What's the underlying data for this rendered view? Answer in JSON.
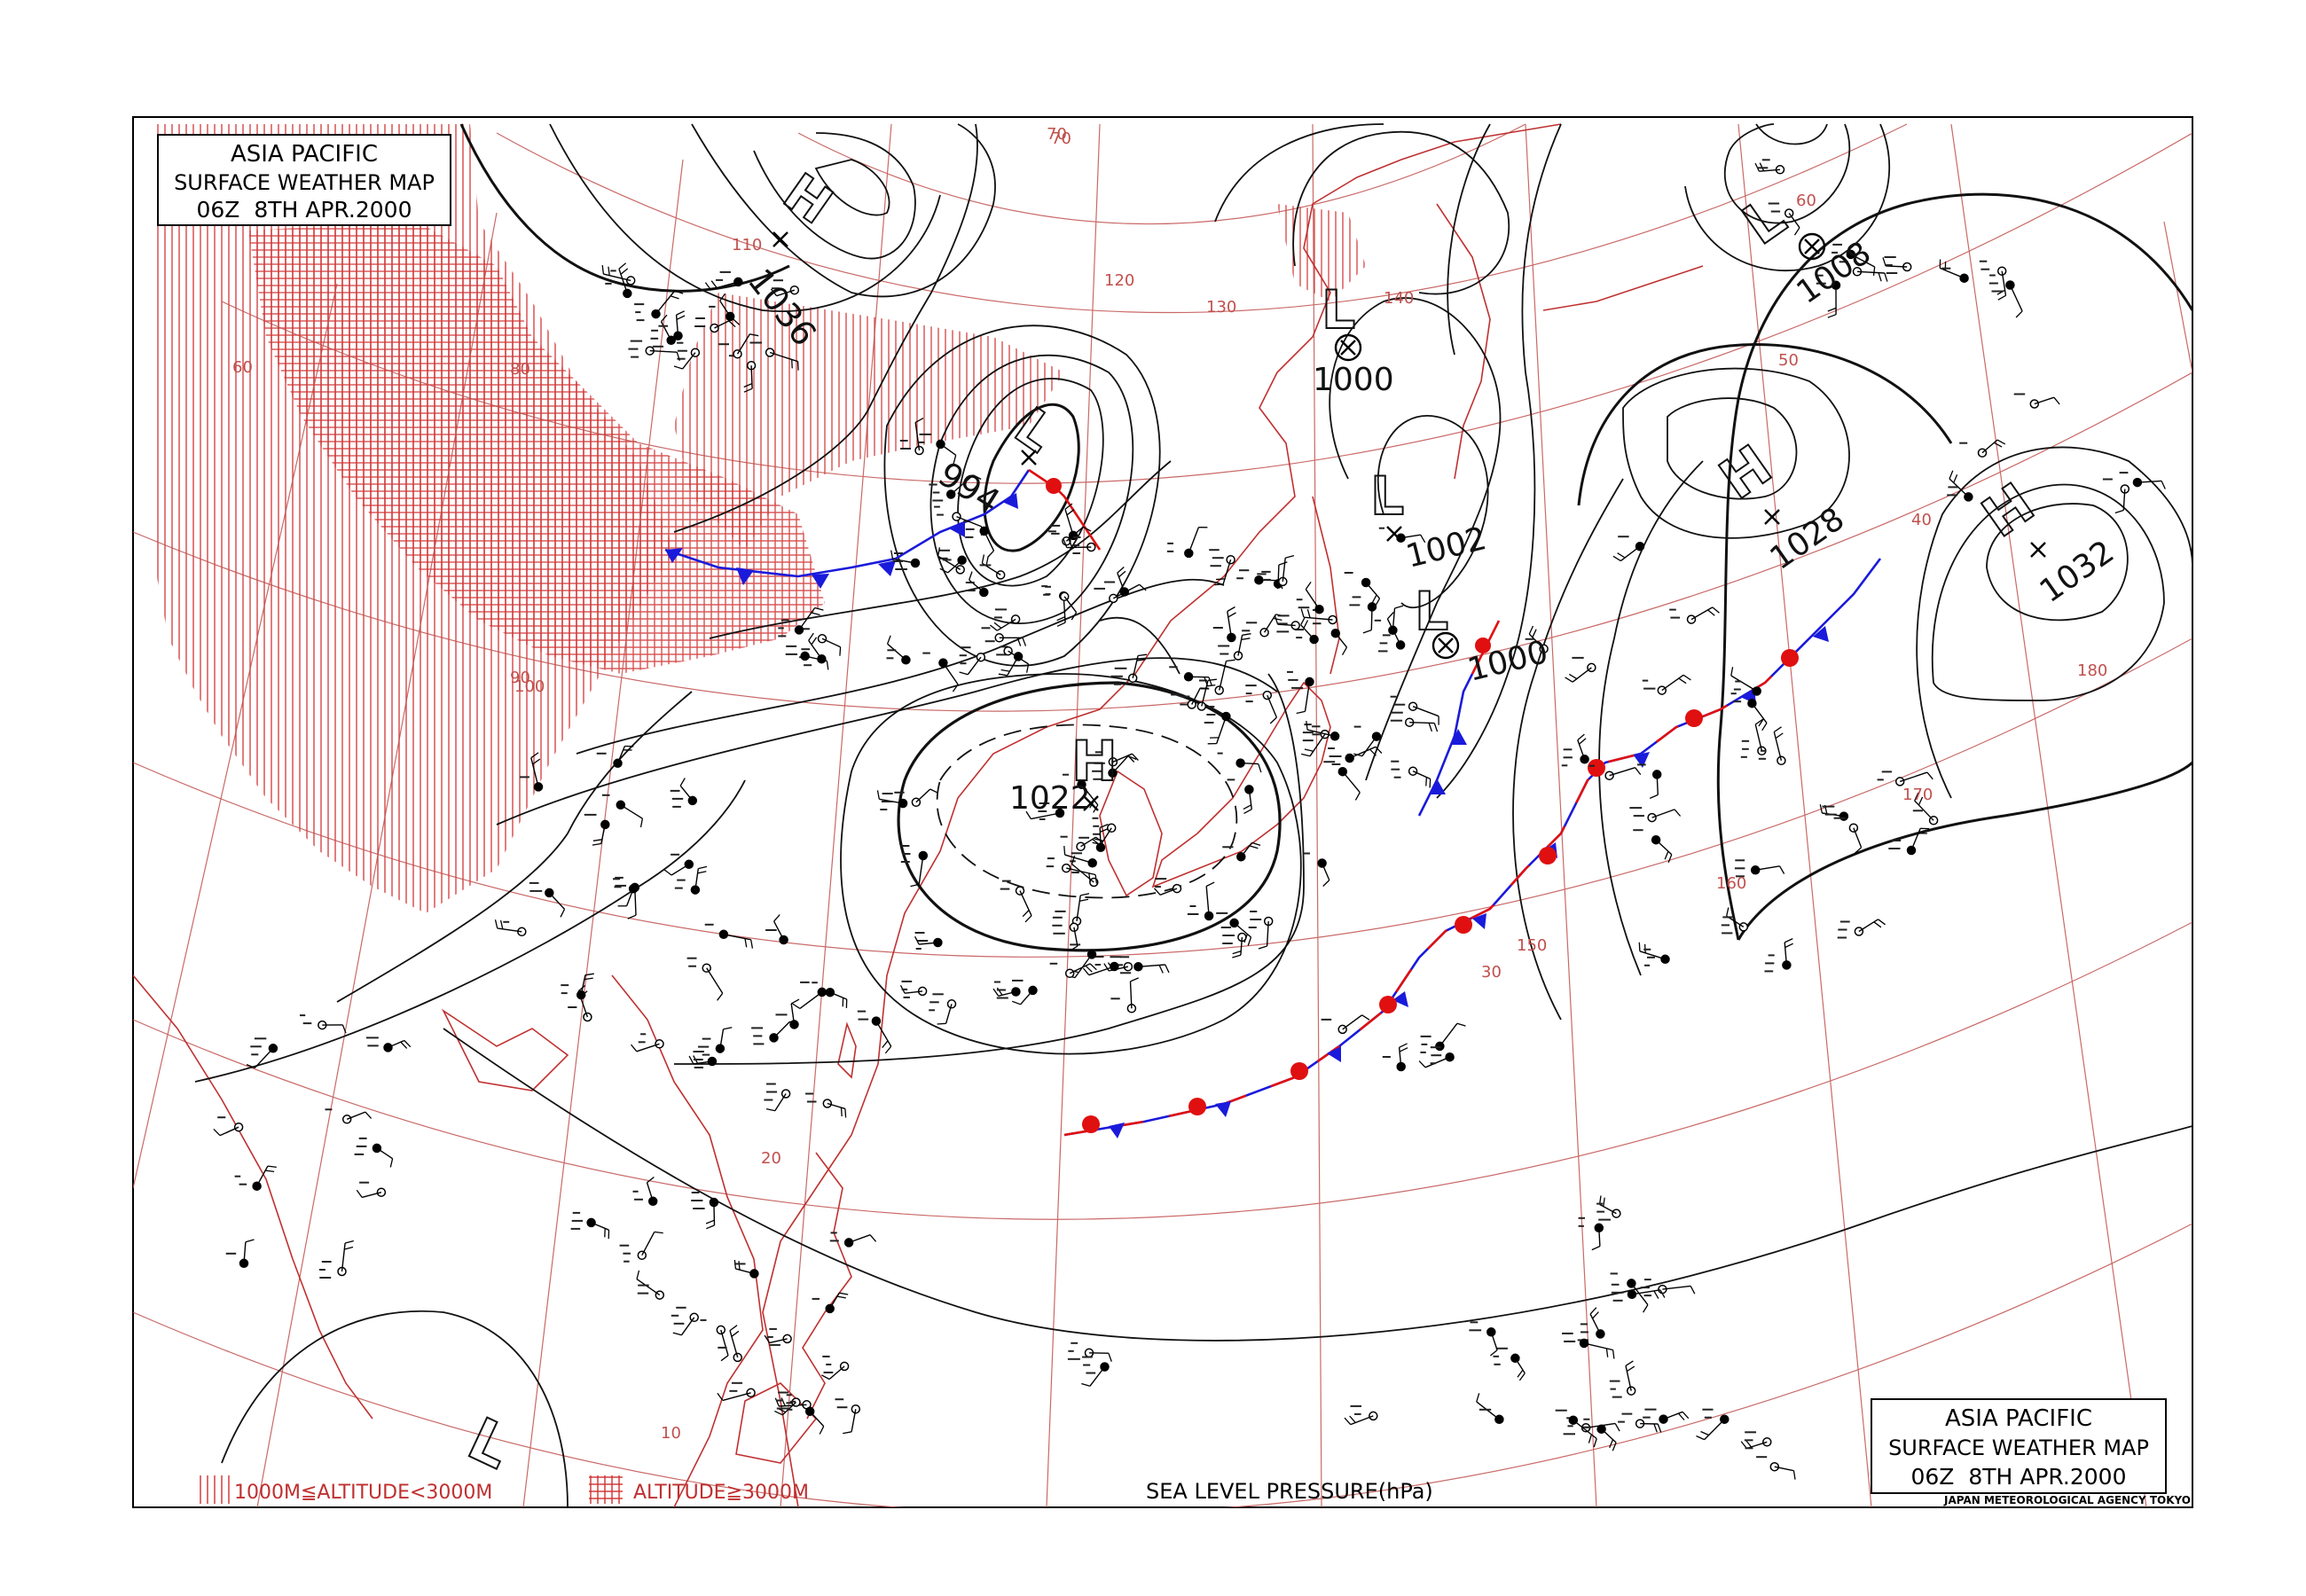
{
  "title_box_top": {
    "line1": "ASIA PACIFIC",
    "line2": "SURFACE WEATHER MAP",
    "line3": "06Z  8TH APR.2000"
  },
  "title_box_bottom": {
    "line1": "ASIA PACIFIC",
    "line2": "SURFACE WEATHER MAP",
    "line3": "06Z  8TH APR.2000"
  },
  "credit": "JAPAN METEOROLOGICAL AGENCY TOKYO",
  "footer": {
    "pressure_label": "SEA LEVEL PRESSURE(hPa)",
    "legend_mid": "1000M≦ALTITUDE<3000M",
    "legend_high": "ALTITUDE≧3000M"
  },
  "pressure_systems": [
    {
      "type": "H",
      "value": "1036"
    },
    {
      "type": "L",
      "value": "994"
    },
    {
      "type": "L",
      "value": "1000"
    },
    {
      "type": "L",
      "value": "1002"
    },
    {
      "type": "L",
      "value": "1000"
    },
    {
      "type": "H",
      "value": "1022"
    },
    {
      "type": "L",
      "value": "1008"
    },
    {
      "type": "H",
      "value": "1028"
    },
    {
      "type": "H",
      "value": "1032"
    },
    {
      "type": "L",
      "value": ""
    }
  ],
  "grid_labels": {
    "longitudes": [
      "60",
      "70",
      "80",
      "90",
      "100",
      "110",
      "120",
      "130",
      "140",
      "150",
      "160",
      "170",
      "180"
    ],
    "latitudes": [
      "10",
      "20",
      "30",
      "40",
      "50",
      "60",
      "70"
    ]
  },
  "colors": {
    "isobar": "#111111",
    "grid": "#c0504d",
    "terrain": "#d02020",
    "cold_front": "#1a1adb",
    "warm_front": "#e01010"
  }
}
